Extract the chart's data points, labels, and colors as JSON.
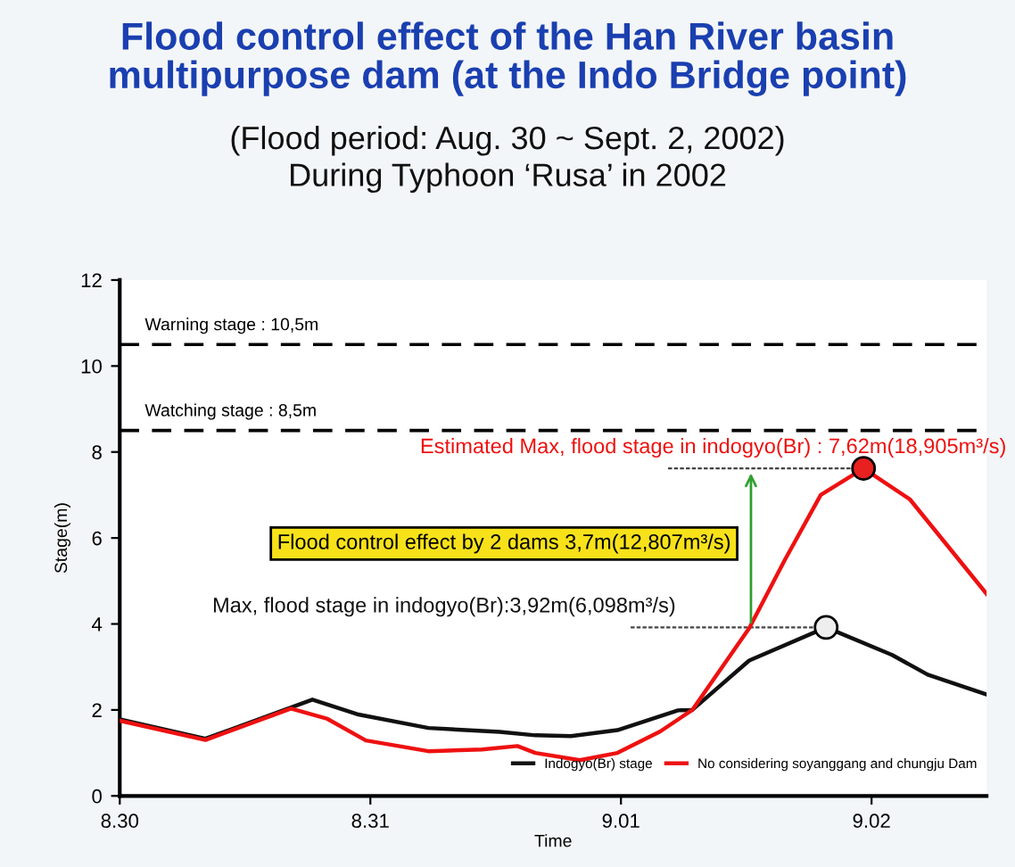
{
  "chart_data": {
    "type": "line",
    "title": "Flood control effect of the Han River basin\nmultipurpose dam (at the Indo Bridge point)",
    "subtitle": "(Flood period: Aug. 30 ~ Sept. 2, 2002)\nDuring Typhoon ‘Rusa’ in 2002",
    "xlabel": "Time",
    "ylabel": "Stage(m)",
    "xlim": [
      "2002-08-30T00:00",
      "2002-09-02T11:01"
    ],
    "xticks": [
      {
        "value": "2002-08-30",
        "label": "8.30"
      },
      {
        "value": "2002-08-31",
        "label": "8.31"
      },
      {
        "value": "2002-09-01",
        "label": "9.01"
      },
      {
        "value": "2002-09-02",
        "label": "9.02"
      }
    ],
    "ylim": [
      0,
      12
    ],
    "yticks": [
      0,
      2,
      4,
      6,
      8,
      10,
      12
    ],
    "grid": false,
    "legend": "bottom right",
    "marker": "none",
    "line_style": "solid",
    "series": [
      {
        "name": "Indogyo(Br) stage",
        "color": "#111111",
        "x": [
          "2002-08-30T00:00",
          "2002-08-30T08:12",
          "2002-08-30T18:27",
          "2002-08-30T22:44",
          "2002-08-31T05:33",
          "2002-08-31T12:23",
          "2002-08-31T15:48",
          "2002-08-31T19:13",
          "2002-08-31T23:40",
          "2002-09-01T05:28",
          "2002-09-01T06:50",
          "2002-09-01T12:17",
          "2002-09-01T19:39",
          "2002-09-02T01:58",
          "2002-09-02T05:23",
          "2002-09-02T11:01"
        ],
        "values": [
          1.78,
          1.33,
          2.24,
          1.9,
          1.58,
          1.49,
          1.41,
          1.39,
          1.53,
          1.99,
          2.0,
          3.15,
          3.92,
          3.28,
          2.82,
          2.36
        ]
      },
      {
        "name": "No considering soyanggang and chungju Dam",
        "color": "#ee1111",
        "x": [
          "2002-08-30T00:00",
          "2002-08-30T08:12",
          "2002-08-30T16:24",
          "2002-08-30T19:49",
          "2002-08-30T23:34",
          "2002-08-31T05:33",
          "2002-08-31T10:41",
          "2002-08-31T14:05",
          "2002-08-31T15:48",
          "2002-08-31T20:04",
          "2002-08-31T23:40",
          "2002-09-01T03:46",
          "2002-09-01T06:50",
          "2002-09-01T12:17",
          "2002-09-01T15:43",
          "2002-09-01T19:08",
          "2002-09-01T23:14",
          "2002-09-02T03:40",
          "2002-09-02T11:01"
        ],
        "values": [
          1.75,
          1.3,
          2.03,
          1.8,
          1.29,
          1.04,
          1.08,
          1.16,
          1.0,
          0.83,
          1.0,
          1.5,
          2.0,
          3.9,
          5.5,
          7.0,
          7.62,
          6.9,
          4.7
        ]
      }
    ],
    "ref_lines": [
      {
        "axis": "y",
        "value": 10.5,
        "label": "Warning stage : 10,5m",
        "color": "#000000",
        "line_style": "dashed"
      },
      {
        "axis": "y",
        "value": 8.5,
        "label": "Watching stage : 8,5m",
        "color": "#000000",
        "line_style": "dashed"
      }
    ],
    "annotations": [
      {
        "text": "Estimated Max, flood stage in indogyo(Br) : 7,62m(18,905m³/s)",
        "x": "2002-09-01T23:14",
        "y": 7.62
      },
      {
        "text": "Max, flood stage in indogyo(Br):3,92m(6,098m³/s)",
        "x": "2002-09-01T19:39",
        "y": 3.92
      },
      "Flood control effect by 2 dams 3,7m(12,807m³/s)"
    ]
  }
}
